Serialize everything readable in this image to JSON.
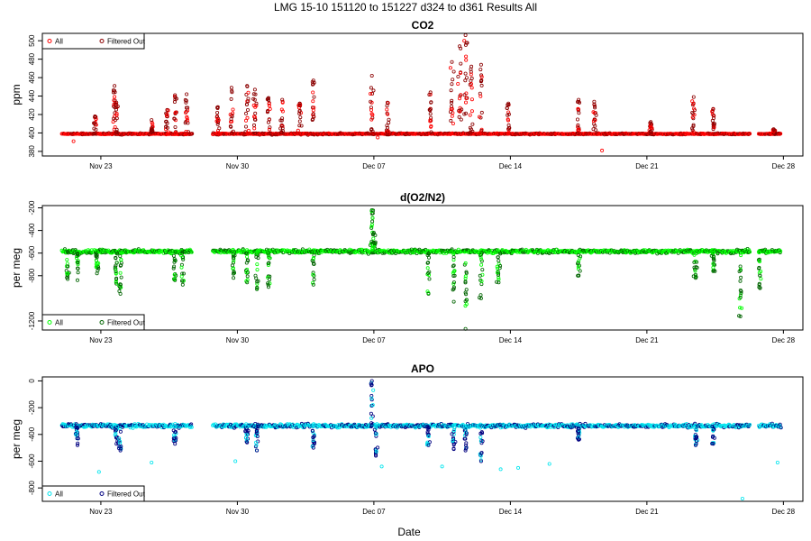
{
  "figure": {
    "title": "LMG   15-10     151120 to 151227     d324 to d361    Results All",
    "xlabel": "Date",
    "x_ticks": [
      "Nov 23",
      "Nov 30",
      "Dec 07",
      "Dec 14",
      "Dec 21",
      "Dec 28"
    ],
    "x_tick_days": [
      3,
      10,
      17,
      24,
      31,
      38
    ],
    "x_range": [
      0,
      39
    ],
    "data_gap_days": [
      7.7,
      8.7
    ]
  },
  "chart_data": [
    {
      "type": "scatter",
      "title": "CO2",
      "ylabel": "ppm",
      "ylim": [
        375,
        508
      ],
      "y_ticks": [
        380,
        400,
        420,
        440,
        460,
        480,
        500
      ],
      "baseline": 399,
      "legend": {
        "placement": "top-left",
        "entries": [
          "All",
          "Filtered Out"
        ]
      },
      "series": [
        {
          "name": "All",
          "color": "#ff0000"
        },
        {
          "name": "Filtered Out",
          "color": "#8b0000"
        }
      ],
      "spikes": [
        {
          "x": 2.7,
          "y": 418
        },
        {
          "x": 3.7,
          "y": 451
        },
        {
          "x": 3.8,
          "y": 433
        },
        {
          "x": 5.6,
          "y": 414
        },
        {
          "x": 6.4,
          "y": 425
        },
        {
          "x": 6.8,
          "y": 441
        },
        {
          "x": 7.4,
          "y": 442
        },
        {
          "x": 9.0,
          "y": 428
        },
        {
          "x": 9.7,
          "y": 449
        },
        {
          "x": 10.5,
          "y": 451
        },
        {
          "x": 10.9,
          "y": 447
        },
        {
          "x": 11.6,
          "y": 438
        },
        {
          "x": 12.3,
          "y": 436
        },
        {
          "x": 13.2,
          "y": 432
        },
        {
          "x": 13.9,
          "y": 457
        },
        {
          "x": 16.9,
          "y": 462
        },
        {
          "x": 17.7,
          "y": 433
        },
        {
          "x": 19.9,
          "y": 444
        },
        {
          "x": 21.0,
          "y": 477
        },
        {
          "x": 21.4,
          "y": 494
        },
        {
          "x": 21.7,
          "y": 506
        },
        {
          "x": 22.0,
          "y": 472
        },
        {
          "x": 22.5,
          "y": 474
        },
        {
          "x": 23.9,
          "y": 432
        },
        {
          "x": 27.5,
          "y": 436
        },
        {
          "x": 28.3,
          "y": 434
        },
        {
          "x": 31.2,
          "y": 412
        },
        {
          "x": 33.4,
          "y": 439
        },
        {
          "x": 34.4,
          "y": 426
        },
        {
          "x": 37.5,
          "y": 404
        }
      ],
      "dips": [
        {
          "x": 1.6,
          "y": 391
        },
        {
          "x": 17.2,
          "y": 395
        },
        {
          "x": 28.7,
          "y": 381
        }
      ]
    },
    {
      "type": "scatter",
      "title": "d(O2/N2)",
      "ylabel": "per meg",
      "ylim": [
        -1280,
        -180
      ],
      "y_ticks": [
        -1200,
        -800,
        -600,
        -400,
        -200
      ],
      "baseline": -585,
      "legend": {
        "placement": "bottom-left",
        "entries": [
          "All",
          "Filtered Out"
        ]
      },
      "series": [
        {
          "name": "All",
          "color": "#00ff00"
        },
        {
          "name": "Filtered Out",
          "color": "#006400"
        }
      ],
      "spikes": [
        {
          "x": 1.3,
          "y": -830
        },
        {
          "x": 1.8,
          "y": -840
        },
        {
          "x": 2.8,
          "y": -780
        },
        {
          "x": 3.8,
          "y": -870
        },
        {
          "x": 4.0,
          "y": -960
        },
        {
          "x": 6.8,
          "y": -840
        },
        {
          "x": 7.2,
          "y": -880
        },
        {
          "x": 9.8,
          "y": -820
        },
        {
          "x": 10.5,
          "y": -860
        },
        {
          "x": 11.0,
          "y": -920
        },
        {
          "x": 11.6,
          "y": -900
        },
        {
          "x": 13.9,
          "y": -880
        },
        {
          "x": 16.9,
          "y": -220
        },
        {
          "x": 17.0,
          "y": -420
        },
        {
          "x": 19.8,
          "y": -960
        },
        {
          "x": 21.1,
          "y": -1030
        },
        {
          "x": 21.7,
          "y": -1270
        },
        {
          "x": 22.5,
          "y": -1000
        },
        {
          "x": 23.4,
          "y": -860
        },
        {
          "x": 27.5,
          "y": -800
        },
        {
          "x": 33.5,
          "y": -820
        },
        {
          "x": 34.4,
          "y": -760
        },
        {
          "x": 35.8,
          "y": -1160
        },
        {
          "x": 36.8,
          "y": -910
        }
      ],
      "dips": []
    },
    {
      "type": "scatter",
      "title": "APO",
      "ylabel": "per meg",
      "ylim": [
        -900,
        30
      ],
      "y_ticks": [
        -800,
        -600,
        -400,
        -200,
        0
      ],
      "baseline": -335,
      "legend": {
        "placement": "bottom-left",
        "entries": [
          "All",
          "Filtered Out"
        ]
      },
      "series": [
        {
          "name": "All",
          "color": "#00e5ee"
        },
        {
          "name": "Filtered Out",
          "color": "#000080"
        }
      ],
      "spikes": [
        {
          "x": 1.8,
          "y": -480
        },
        {
          "x": 3.8,
          "y": -470
        },
        {
          "x": 4.0,
          "y": -520
        },
        {
          "x": 6.8,
          "y": -470
        },
        {
          "x": 10.5,
          "y": -460
        },
        {
          "x": 11.0,
          "y": -520
        },
        {
          "x": 13.9,
          "y": -500
        },
        {
          "x": 16.9,
          "y": 0
        },
        {
          "x": 17.1,
          "y": -560
        },
        {
          "x": 19.8,
          "y": -480
        },
        {
          "x": 21.1,
          "y": -510
        },
        {
          "x": 21.7,
          "y": -520
        },
        {
          "x": 22.5,
          "y": -600
        },
        {
          "x": 27.5,
          "y": -440
        },
        {
          "x": 33.5,
          "y": -480
        },
        {
          "x": 34.4,
          "y": -470
        }
      ],
      "dips": [
        {
          "x": 2.9,
          "y": -680
        },
        {
          "x": 5.6,
          "y": -610
        },
        {
          "x": 9.9,
          "y": -600
        },
        {
          "x": 17.4,
          "y": -640
        },
        {
          "x": 20.5,
          "y": -640
        },
        {
          "x": 23.5,
          "y": -660
        },
        {
          "x": 24.4,
          "y": -650
        },
        {
          "x": 26.0,
          "y": -620
        },
        {
          "x": 35.9,
          "y": -880
        },
        {
          "x": 37.7,
          "y": -610
        }
      ]
    }
  ]
}
